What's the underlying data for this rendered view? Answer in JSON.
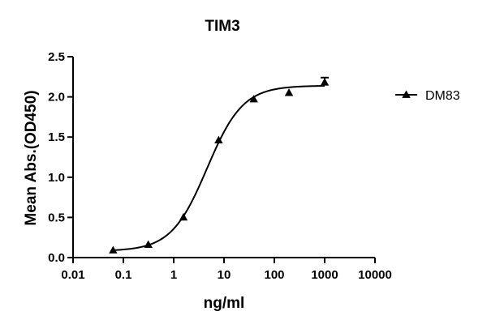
{
  "chart_data": {
    "type": "scatter",
    "title": "TIM3",
    "xlabel": "ng/ml",
    "ylabel": "Mean Abs.(OD450)",
    "xscale": "log",
    "xlim": [
      0.01,
      10000
    ],
    "ylim": [
      0,
      2.5
    ],
    "x_ticks": [
      0.01,
      0.1,
      1,
      10,
      100,
      1000,
      10000
    ],
    "x_tick_labels": [
      "0.01",
      "0.1",
      "1",
      "10",
      "100",
      "1000",
      "10000"
    ],
    "y_ticks": [
      0,
      0.5,
      1,
      1.5,
      2,
      2.5
    ],
    "y_tick_labels": [
      "0.0",
      "0.5",
      "1.0",
      "1.5",
      "2.0",
      "2.5"
    ],
    "grid": false,
    "legend_position": "right",
    "series": [
      {
        "name": "DM83",
        "marker": "triangle",
        "color": "#000000",
        "fit": "4-parameter logistic",
        "points": [
          {
            "x": 0.0625,
            "y": 0.09
          },
          {
            "x": 0.3125,
            "y": 0.16
          },
          {
            "x": 1.5625,
            "y": 0.5
          },
          {
            "x": 7.8125,
            "y": 1.46
          },
          {
            "x": 39.0625,
            "y": 1.97
          },
          {
            "x": 195.3,
            "y": 2.05
          },
          {
            "x": 1000,
            "y": 2.18,
            "error": 0.06
          }
        ]
      }
    ]
  }
}
